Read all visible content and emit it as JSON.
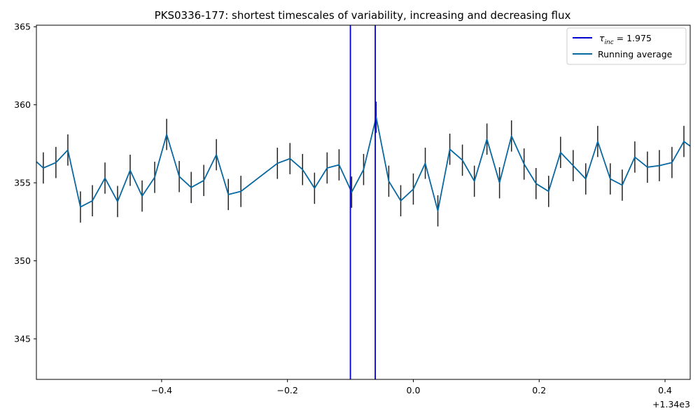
{
  "chart_data": {
    "type": "line",
    "title": "PKS0336-177: shortest timescales of variability, increasing and decreasing flux",
    "xlabel": "",
    "ylabel": "",
    "x_offset_label": "+1.34e3",
    "xlim": [
      -0.599,
      0.44
    ],
    "ylim": [
      342.4,
      365.1
    ],
    "x_tick_values": [
      -0.4,
      -0.2,
      0.0,
      0.2,
      0.4
    ],
    "x_tick_labels": [
      "−0.4",
      "−0.2",
      "0.0",
      "0.2",
      "0.4"
    ],
    "y_tick_values": [
      345,
      350,
      355,
      360,
      365
    ],
    "y_tick_labels": [
      "345",
      "350",
      "355",
      "360",
      "365"
    ],
    "grid": false,
    "legend_position": "top-right",
    "legend": {
      "tau_symbol": "τ",
      "tau_subscript": "inc",
      "tau_text": " = 1.975",
      "running_average": "Running average"
    },
    "colors": {
      "series_line": "#0868a0",
      "vertical_lines": "#0000cc",
      "error_bars": "#222222"
    },
    "vertical_lines_x": [
      -0.1,
      -0.0605
    ],
    "series": [
      {
        "name": "Running average",
        "x": [
          -0.599,
          -0.588,
          -0.568,
          -0.549,
          -0.529,
          -0.51,
          -0.49,
          -0.47,
          -0.45,
          -0.431,
          -0.411,
          -0.392,
          -0.372,
          -0.353,
          -0.333,
          -0.313,
          -0.294,
          -0.274,
          -0.216,
          -0.196,
          -0.176,
          -0.157,
          -0.137,
          -0.118,
          -0.098,
          -0.079,
          -0.059,
          -0.039,
          -0.02,
          0.0,
          0.019,
          0.039,
          0.058,
          0.078,
          0.097,
          0.117,
          0.137,
          0.156,
          0.176,
          0.195,
          0.215,
          0.234,
          0.254,
          0.274,
          0.293,
          0.313,
          0.332,
          0.352,
          0.372,
          0.391,
          0.411,
          0.43,
          0.44
        ],
        "y": [
          356.35,
          355.95,
          356.3,
          357.1,
          353.45,
          353.85,
          355.3,
          353.8,
          355.8,
          354.15,
          355.35,
          358.1,
          355.4,
          354.7,
          355.15,
          356.8,
          354.25,
          354.45,
          356.25,
          356.55,
          355.85,
          354.65,
          355.95,
          356.15,
          354.4,
          355.85,
          359.2,
          355.1,
          353.85,
          354.6,
          356.25,
          353.2,
          357.15,
          356.45,
          355.1,
          357.8,
          355.0,
          358.0,
          356.2,
          354.95,
          354.45,
          356.95,
          356.1,
          355.25,
          357.65,
          355.25,
          354.85,
          356.65,
          356.0,
          356.1,
          356.3,
          357.65,
          357.35
        ],
        "error_bar_x": [
          -0.588,
          -0.568,
          -0.549,
          -0.529,
          -0.51,
          -0.49,
          -0.47,
          -0.45,
          -0.431,
          -0.411,
          -0.392,
          -0.372,
          -0.353,
          -0.333,
          -0.313,
          -0.294,
          -0.274,
          -0.216,
          -0.196,
          -0.176,
          -0.157,
          -0.137,
          -0.118,
          -0.098,
          -0.079,
          -0.059,
          -0.039,
          -0.02,
          0.0,
          0.019,
          0.039,
          0.058,
          0.078,
          0.097,
          0.117,
          0.137,
          0.156,
          0.176,
          0.195,
          0.215,
          0.234,
          0.254,
          0.274,
          0.293,
          0.313,
          0.332,
          0.352,
          0.372,
          0.391,
          0.411,
          0.43
        ],
        "error": 1.0
      }
    ]
  }
}
